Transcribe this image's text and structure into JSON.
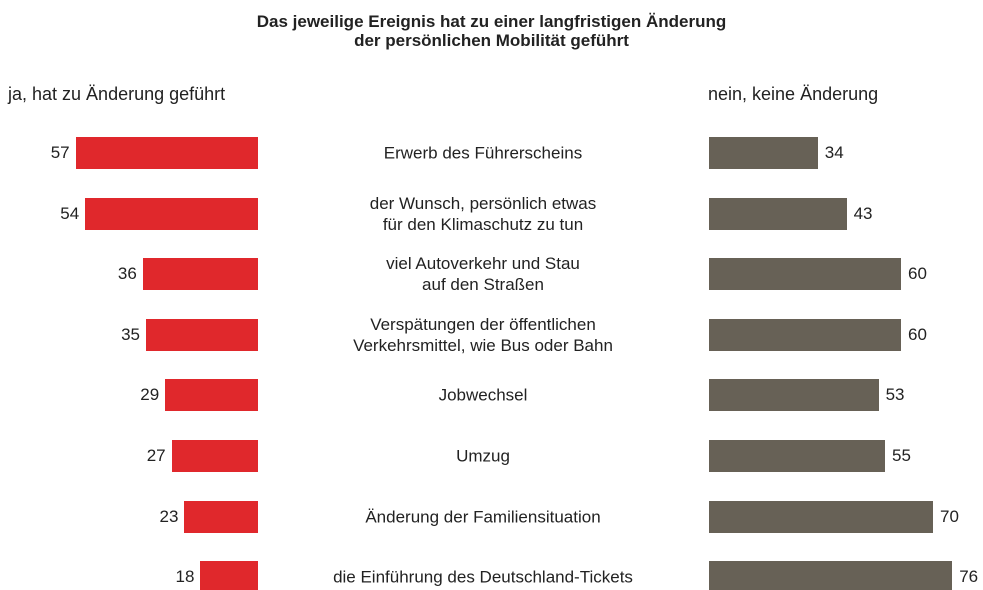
{
  "chart_data": {
    "type": "butterfly",
    "title": "Das jeweilige Ereignis hat zu einer langfristigen Änderung\nder persönlichen Mobilität geführt",
    "categories": [
      "Erwerb des Führerscheins",
      "der Wunsch, persönlich etwas\nfür den Klimaschutz zu tun",
      "viel Autoverkehr und Stau\nauf den Straßen",
      "Verspätungen der öffentlichen\nVerkehrsmittel, wie Bus oder Bahn",
      "Jobwechsel",
      "Umzug",
      "Änderung der Familiensituation",
      "die Einführung des Deutschland-Tickets"
    ],
    "series": [
      {
        "name": "ja, hat zu Änderung geführt",
        "color": "#e0282c",
        "values": [
          57,
          54,
          36,
          35,
          29,
          27,
          23,
          18
        ]
      },
      {
        "name": "nein, keine Änderung",
        "color": "#676156",
        "values": [
          34,
          43,
          60,
          60,
          53,
          55,
          70,
          76
        ]
      }
    ]
  }
}
